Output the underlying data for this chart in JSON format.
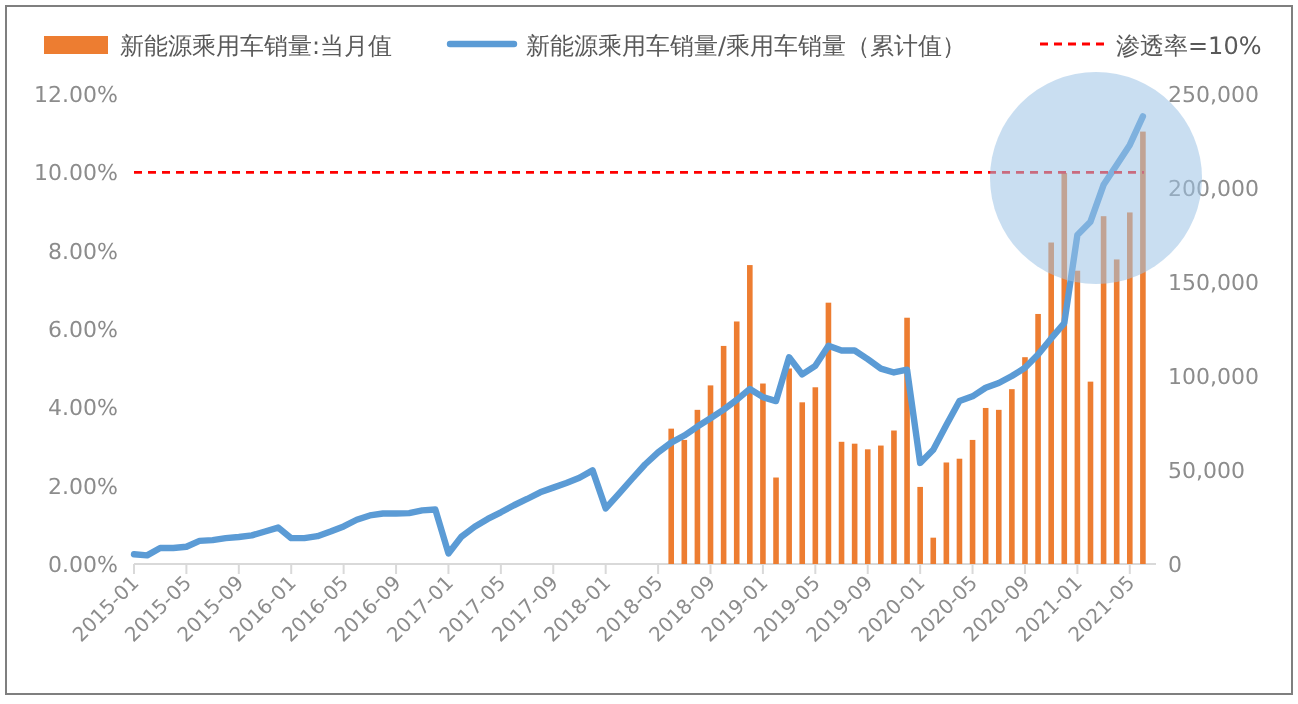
{
  "chart_data": {
    "type": "bar",
    "legend": "top",
    "grid": false,
    "xlim": [
      "2015-01",
      "2021-07"
    ],
    "xticks": [
      "2015-01",
      "2015-05",
      "2015-09",
      "2016-01",
      "2016-05",
      "2016-09",
      "2017-01",
      "2017-05",
      "2017-09",
      "2018-01",
      "2018-05",
      "2018-09",
      "2019-01",
      "2019-05",
      "2019-09",
      "2020-01",
      "2020-05",
      "2020-09",
      "2021-01",
      "2021-05"
    ],
    "ylim": [
      0,
      12
    ],
    "yticks": [
      {
        "value": 0,
        "label": "0.00%"
      },
      {
        "value": 2,
        "label": "2.00%"
      },
      {
        "value": 4,
        "label": "4.00%"
      },
      {
        "value": 6,
        "label": "6.00%"
      },
      {
        "value": 8,
        "label": "8.00%"
      },
      {
        "value": 10,
        "label": "10.00%"
      },
      {
        "value": 12,
        "label": "12.00%"
      }
    ],
    "y2lim": [
      0,
      250000
    ],
    "y2ticks": [
      {
        "value": 0,
        "label": "0"
      },
      {
        "value": 50000,
        "label": "50,000"
      },
      {
        "value": 100000,
        "label": "100,000"
      },
      {
        "value": 150000,
        "label": "150,000"
      },
      {
        "value": 200000,
        "label": "200,000"
      },
      {
        "value": 250000,
        "label": "250,000"
      }
    ],
    "series": [
      {
        "name": "新能源乘用车销量:当月值",
        "axis": "y2",
        "color": "#ed7d31",
        "x": [
          "2018-06",
          "2018-07",
          "2018-08",
          "2018-09",
          "2018-10",
          "2018-11",
          "2018-12",
          "2019-01",
          "2019-02",
          "2019-03",
          "2019-04",
          "2019-05",
          "2019-06",
          "2019-07",
          "2019-08",
          "2019-09",
          "2019-10",
          "2019-11",
          "2019-12",
          "2020-01",
          "2020-02",
          "2020-03",
          "2020-04",
          "2020-05",
          "2020-06",
          "2020-07",
          "2020-08",
          "2020-09",
          "2020-10",
          "2020-11",
          "2020-12",
          "2021-01",
          "2021-02",
          "2021-03",
          "2021-04",
          "2021-05",
          "2021-06"
        ],
        "values": [
          72000,
          66000,
          82000,
          95000,
          116000,
          129000,
          159000,
          96000,
          46000,
          104000,
          86000,
          94000,
          139000,
          65000,
          64000,
          61000,
          63000,
          71000,
          131000,
          41000,
          14000,
          54000,
          56000,
          66000,
          83000,
          82000,
          93000,
          110000,
          133000,
          171000,
          208000,
          156000,
          97000,
          185000,
          162000,
          187000,
          230000
        ]
      },
      {
        "name": "新能源乘用车销量/乘用车销量（累计值）",
        "type": "line",
        "axis": "y",
        "color": "#5b9bd5",
        "line_style": "solid",
        "marker": "none",
        "x": [
          "2015-01",
          "2015-02",
          "2015-03",
          "2015-04",
          "2015-05",
          "2015-06",
          "2015-07",
          "2015-08",
          "2015-09",
          "2015-10",
          "2015-11",
          "2015-12",
          "2016-01",
          "2016-02",
          "2016-03",
          "2016-04",
          "2016-05",
          "2016-06",
          "2016-07",
          "2016-08",
          "2016-09",
          "2016-10",
          "2016-11",
          "2016-12",
          "2017-01",
          "2017-02",
          "2017-03",
          "2017-04",
          "2017-05",
          "2017-06",
          "2017-07",
          "2017-08",
          "2017-09",
          "2017-10",
          "2017-11",
          "2017-12",
          "2018-01",
          "2018-02",
          "2018-03",
          "2018-04",
          "2018-05",
          "2018-06",
          "2018-07",
          "2018-08",
          "2018-09",
          "2018-10",
          "2018-11",
          "2018-12",
          "2019-01",
          "2019-02",
          "2019-03",
          "2019-04",
          "2019-05",
          "2019-06",
          "2019-07",
          "2019-08",
          "2019-09",
          "2019-10",
          "2019-11",
          "2019-12",
          "2020-01",
          "2020-02",
          "2020-03",
          "2020-04",
          "2020-05",
          "2020-06",
          "2020-07",
          "2020-08",
          "2020-09",
          "2020-10",
          "2020-11",
          "2020-12",
          "2021-01",
          "2021-02",
          "2021-03",
          "2021-04",
          "2021-05",
          "2021-06"
        ],
        "values": [
          0.25,
          0.22,
          0.41,
          0.41,
          0.44,
          0.59,
          0.61,
          0.66,
          0.69,
          0.73,
          0.83,
          0.93,
          0.66,
          0.66,
          0.71,
          0.83,
          0.96,
          1.13,
          1.24,
          1.29,
          1.29,
          1.3,
          1.37,
          1.39,
          0.27,
          0.7,
          0.95,
          1.15,
          1.32,
          1.5,
          1.66,
          1.83,
          1.95,
          2.07,
          2.2,
          2.39,
          1.42,
          1.79,
          2.17,
          2.54,
          2.85,
          3.1,
          3.28,
          3.51,
          3.72,
          3.94,
          4.19,
          4.47,
          4.26,
          4.16,
          5.28,
          4.84,
          5.06,
          5.57,
          5.45,
          5.45,
          5.23,
          4.99,
          4.89,
          4.96,
          2.58,
          2.92,
          3.55,
          4.16,
          4.28,
          4.5,
          4.62,
          4.8,
          5.01,
          5.35,
          5.76,
          6.15,
          8.4,
          8.74,
          9.68,
          10.19,
          10.7,
          11.43
        ]
      }
    ],
    "ref_lines": [
      {
        "axis": "y",
        "value": 10,
        "label": "渗透率=10%",
        "color": "#ff0000",
        "line_style": "dashed"
      }
    ]
  }
}
